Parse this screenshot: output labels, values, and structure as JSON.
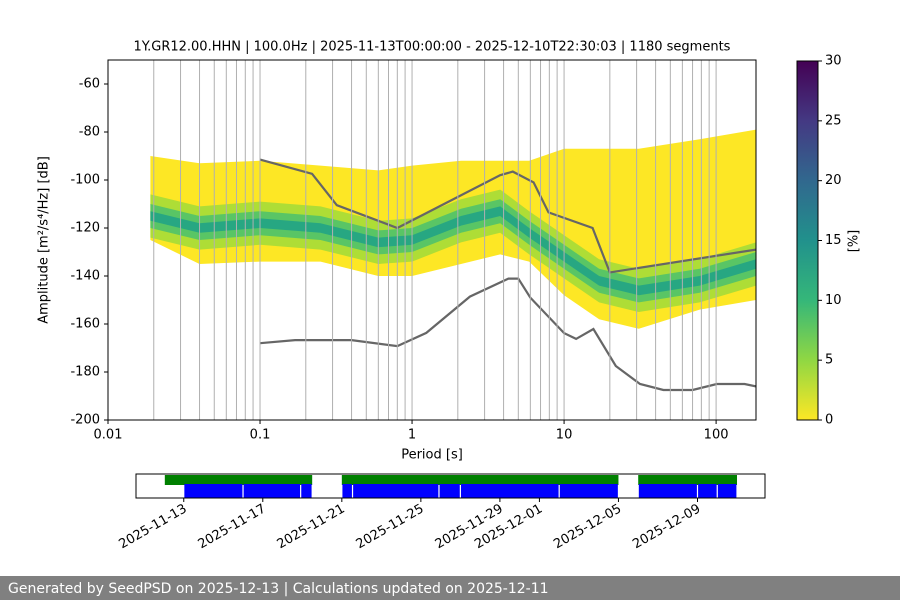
{
  "chart_data": [
    {
      "type": "ppsd",
      "title": "1Y.GR12.00.HHN | 100.0Hz | 2025-11-13T00:00:00 - 2025-12-10T22:30:03 | 1180 segments",
      "xlabel": "Period [s]",
      "ylabel": "Amplitude [m²/s⁴/Hz] [dB]",
      "log_x": true,
      "xlim": [
        0.01,
        183
      ],
      "xticks": [
        0.01,
        0.1,
        1,
        10,
        100
      ],
      "xgrid": [
        0.02,
        0.03,
        0.04,
        0.05,
        0.06,
        0.07,
        0.08,
        0.09,
        0.1,
        0.2,
        0.3,
        0.4,
        0.5,
        0.6,
        0.7,
        0.8,
        0.9,
        1,
        2,
        3,
        4,
        5,
        6,
        7,
        8,
        9,
        10,
        20,
        30,
        40,
        50,
        60,
        70,
        80,
        90,
        100
      ],
      "ylim": [
        -200,
        -50
      ],
      "yticks": [
        -200,
        -180,
        -160,
        -140,
        -120,
        -100,
        -80,
        -60
      ],
      "density": {
        "x": [
          0.019,
          0.04,
          0.1,
          0.25,
          0.6,
          1,
          2.1,
          3.8,
          5.9,
          10,
          17,
          31,
          78,
          183
        ],
        "low": [
          -125,
          -135,
          -134,
          -134,
          -140,
          -140,
          -135,
          -131,
          -134,
          -148,
          -158,
          -162,
          -154,
          -150
        ],
        "high": [
          -90,
          -93,
          -92,
          -94,
          -96,
          -94,
          -92,
          -92,
          -92,
          -87,
          -87,
          -87,
          -83,
          -79
        ],
        "mode": [
          -115,
          -120,
          -118,
          -120,
          -126,
          -125,
          -117,
          -113,
          -122,
          -132,
          -142,
          -146,
          -142,
          -135
        ],
        "colors": [
          "#fde725",
          "#a0da39",
          "#4ac16d",
          "#1fa187"
        ]
      },
      "series": [
        {
          "color": "#666666",
          "x": [
            0.1,
            0.22,
            0.32,
            0.8,
            3.8,
            4.6,
            6.3,
            7.9,
            15.4,
            20,
            183
          ],
          "values": [
            -91.5,
            -97.4,
            -110.5,
            -120,
            -98,
            -96.5,
            -101,
            -113.5,
            -120,
            -138.5,
            -129
          ]
        },
        {
          "color": "#666666",
          "x": [
            0.1,
            0.17,
            0.4,
            0.8,
            1.24,
            2.4,
            4.3,
            5,
            6,
            10,
            12,
            15.6,
            21.9,
            31.6,
            45,
            70,
            101,
            154,
            183
          ],
          "values": [
            -168,
            -166.7,
            -166.7,
            -169.2,
            -163.7,
            -148.6,
            -141.1,
            -141.1,
            -149,
            -163.8,
            -166.2,
            -162.1,
            -177.5,
            -185,
            -187.5,
            -187.5,
            -185,
            -185,
            -186
          ]
        }
      ],
      "colorbar": {
        "label": "[%]",
        "lim": [
          0,
          30
        ],
        "ticks": [
          0,
          5,
          10,
          15,
          20,
          25,
          30
        ],
        "colors": [
          "#fde725",
          "#90d743",
          "#35b779",
          "#21918c",
          "#31688e",
          "#443983",
          "#440154"
        ]
      }
    },
    {
      "type": "timeline",
      "xlim": [
        "2025-11-10T14:00:00",
        "2025-12-12T10:00:00"
      ],
      "xticks": [
        "2025-11-13",
        "2025-11-17",
        "2025-11-21",
        "2025-11-25",
        "2025-11-29",
        "2025-12-01",
        "2025-12-05",
        "2025-12-09"
      ],
      "series": [
        {
          "color": "#008000",
          "ranges": [
            [
              "2025-11-12T01:00:00",
              "2025-11-19T12:00:00"
            ],
            [
              "2025-11-21T00:00:00",
              "2025-12-05T00:00:00"
            ],
            [
              "2025-12-06T00:00:00",
              "2025-12-11T00:00:00"
            ]
          ]
        },
        {
          "color": "#0000ff",
          "ranges": [
            [
              "2025-11-13T00:00:00",
              "2025-11-16T00:00:00"
            ],
            [
              "2025-11-16T00:00:00",
              "2025-11-18T22:00:00"
            ],
            [
              "2025-11-18T22:00:00",
              "2025-11-19T12:00:00"
            ],
            [
              "2025-11-21T00:00:00",
              "2025-11-21T13:00:00"
            ],
            [
              "2025-11-21T13:00:00",
              "2025-11-25T22:00:00"
            ],
            [
              "2025-11-25T22:00:00",
              "2025-11-27T00:00:00"
            ],
            [
              "2025-11-27T00:00:00",
              "2025-12-02T00:00:00"
            ],
            [
              "2025-12-02T00:00:00",
              "2025-12-05T00:00:00"
            ],
            [
              "2025-12-06T00:00:00",
              "2025-12-09T00:00:00"
            ],
            [
              "2025-12-09T00:00:00",
              "2025-12-10T00:00:00"
            ],
            [
              "2025-12-10T00:00:00",
              "2025-12-11T00:00:00"
            ]
          ]
        }
      ]
    }
  ],
  "footer": "Generated by SeedPSD on 2025-12-13 | Calculations updated on 2025-12-11"
}
